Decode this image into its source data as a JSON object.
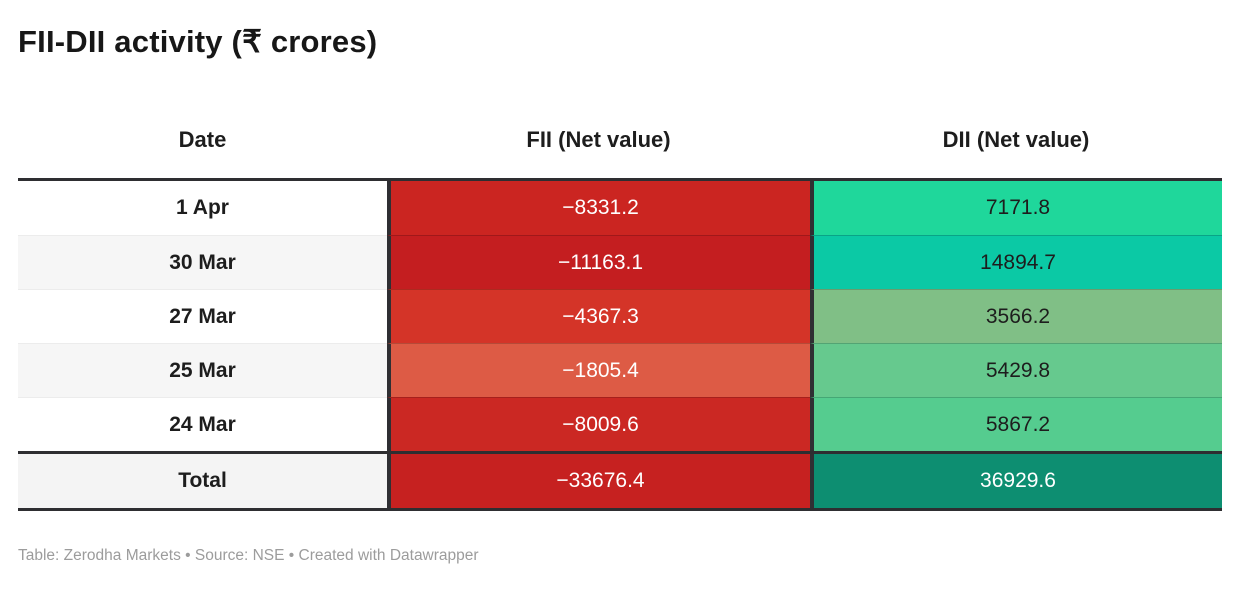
{
  "title": "FII-DII activity (₹ crores)",
  "footer": "Table: Zerodha Markets • Source: NSE • Created with Datawrapper",
  "table": {
    "columns": [
      {
        "label": "Date"
      },
      {
        "label": "FII (Net value)"
      },
      {
        "label": "DII (Net value)"
      }
    ],
    "rows": [
      {
        "date": "1 Apr",
        "fii": "−8331.2",
        "dii": "7171.8",
        "date_bg": "#ffffff",
        "fii_bg": "#cb2521",
        "fii_fg": "#ffffff",
        "dii_bg": "#1fd79b",
        "dii_fg": "#1d1d1d"
      },
      {
        "date": "30 Mar",
        "fii": "−11163.1",
        "dii": "14894.7",
        "date_bg": "#f6f6f6",
        "fii_bg": "#c41e20",
        "fii_fg": "#ffffff",
        "dii_bg": "#0bc9a5",
        "dii_fg": "#1d1d1d"
      },
      {
        "date": "27 Mar",
        "fii": "−4367.3",
        "dii": "3566.2",
        "date_bg": "#ffffff",
        "fii_bg": "#d43428",
        "fii_fg": "#ffffff",
        "dii_bg": "#80bf86",
        "dii_fg": "#1d1d1d"
      },
      {
        "date": "25 Mar",
        "fii": "−1805.4",
        "dii": "5429.8",
        "date_bg": "#f6f6f6",
        "fii_bg": "#dd5b45",
        "fii_fg": "#ffffff",
        "dii_bg": "#66c98e",
        "dii_fg": "#1d1d1d"
      },
      {
        "date": "24 Mar",
        "fii": "−8009.6",
        "dii": "5867.2",
        "date_bg": "#ffffff",
        "fii_bg": "#cb2823",
        "fii_fg": "#ffffff",
        "dii_bg": "#55cc8f",
        "dii_fg": "#1d1d1d"
      }
    ],
    "total": {
      "label": "Total",
      "fii": "−33676.4",
      "dii": "36929.6",
      "date_bg": "#f4f4f4",
      "fii_bg": "#c62120",
      "fii_fg": "#ffffff",
      "dii_bg": "#0d8e71",
      "dii_fg": "#ffffff"
    }
  },
  "colors": {
    "header_border": "#2e2e31",
    "column_separator": "#2f2f33",
    "footer_text": "#9c9c9c"
  },
  "chart_data": {
    "type": "table",
    "title": "FII-DII activity (₹ crores)",
    "columns": [
      "Date",
      "FII (Net value)",
      "DII (Net value)"
    ],
    "rows": [
      [
        "1 Apr",
        -8331.2,
        7171.8
      ],
      [
        "30 Mar",
        -11163.1,
        14894.7
      ],
      [
        "27 Mar",
        -4367.3,
        3566.2
      ],
      [
        "25 Mar",
        -1805.4,
        5429.8
      ],
      [
        "24 Mar",
        -8009.6,
        5867.2
      ],
      [
        "Total",
        -33676.4,
        36929.6
      ]
    ],
    "notes": "Heatmap-colored table: FII column shaded red (more negative = darker red), DII column shaded green/teal (higher = more saturated); Total row darkest shades with white text."
  }
}
